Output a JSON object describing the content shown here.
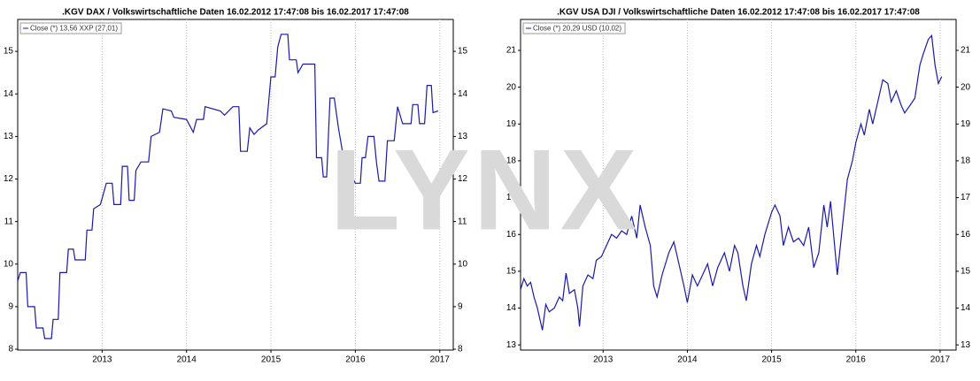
{
  "watermark": "LYNX",
  "chart_data": [
    {
      "type": "line",
      "title": ".KGV DAX / Volkswirtschaftliche Daten 16.02.2012 17:47:08 bis 16.02.2017 17:47:08",
      "xlim": [
        2012.0,
        2017.16
      ],
      "xticks": [
        2013,
        2014,
        2015,
        2016,
        2017
      ],
      "ylim": [
        7.98,
        15.75
      ],
      "yticks": [
        8,
        9,
        10,
        11,
        12,
        13,
        14,
        15
      ],
      "grid": true,
      "series": [
        {
          "name": "Close (*) 13,56 XXP (27,01)",
          "color": "#1a1aa8",
          "x": [
            2012.0,
            2012.03,
            2012.1,
            2012.12,
            2012.2,
            2012.22,
            2012.3,
            2012.32,
            2012.4,
            2012.42,
            2012.48,
            2012.5,
            2012.58,
            2012.6,
            2012.66,
            2012.68,
            2012.8,
            2012.82,
            2012.88,
            2012.9,
            2012.98,
            2013.05,
            2013.12,
            2013.14,
            2013.22,
            2013.24,
            2013.3,
            2013.32,
            2013.38,
            2013.4,
            2013.46,
            2013.55,
            2013.58,
            2013.68,
            2013.72,
            2013.82,
            2013.85,
            2014.0,
            2014.08,
            2014.12,
            2014.2,
            2014.22,
            2014.4,
            2014.45,
            2014.55,
            2014.62,
            2014.64,
            2014.72,
            2014.75,
            2014.8,
            2014.85,
            2014.95,
            2015.0,
            2015.05,
            2015.08,
            2015.12,
            2015.2,
            2015.22,
            2015.3,
            2015.32,
            2015.38,
            2015.52,
            2015.54,
            2015.6,
            2015.62,
            2015.66,
            2015.7,
            2015.75,
            2015.8,
            2015.86,
            2015.9,
            2015.95,
            2016.0,
            2016.06,
            2016.08,
            2016.12,
            2016.15,
            2016.22,
            2016.25,
            2016.28,
            2016.35,
            2016.38,
            2016.46,
            2016.5,
            2016.56,
            2016.66,
            2016.68,
            2016.74,
            2016.76,
            2016.82,
            2016.85,
            2016.9,
            2016.92,
            2016.98
          ],
          "values": [
            9.6,
            9.8,
            9.8,
            9.0,
            9.0,
            8.5,
            8.5,
            8.25,
            8.25,
            8.7,
            8.7,
            9.8,
            9.8,
            10.35,
            10.35,
            10.1,
            10.1,
            10.8,
            10.8,
            11.3,
            11.4,
            11.9,
            11.9,
            11.4,
            11.4,
            12.3,
            12.3,
            11.5,
            11.5,
            12.2,
            12.4,
            12.4,
            13.0,
            13.1,
            13.65,
            13.6,
            13.45,
            13.4,
            13.1,
            13.4,
            13.4,
            13.7,
            13.6,
            13.5,
            13.7,
            13.7,
            12.65,
            12.65,
            13.2,
            13.05,
            13.15,
            13.3,
            14.4,
            14.4,
            15.1,
            15.4,
            15.4,
            14.8,
            14.8,
            14.5,
            14.7,
            14.7,
            12.5,
            12.5,
            12.05,
            12.05,
            13.9,
            13.9,
            13.2,
            12.5,
            12.05,
            12.1,
            11.9,
            11.9,
            12.5,
            12.5,
            13.0,
            13.0,
            12.4,
            11.95,
            11.95,
            12.9,
            12.9,
            13.7,
            13.3,
            13.3,
            13.75,
            13.75,
            13.3,
            13.3,
            14.2,
            14.2,
            13.56,
            13.6
          ]
        }
      ]
    },
    {
      "type": "line",
      "title": ".KGV USA DJI / Volkswirtschaftliche Daten 16.02.2012 17:47:08 bis 16.02.2017 17:47:08",
      "xlim": [
        2012.02,
        2017.19
      ],
      "xticks": [
        2013,
        2014,
        2015,
        2016,
        2017
      ],
      "ylim": [
        12.86,
        21.84
      ],
      "yticks": [
        13,
        14,
        15,
        16,
        17,
        18,
        19,
        20,
        21
      ],
      "grid": true,
      "series": [
        {
          "name": "Close (*) 20,29 USD (10,02)",
          "color": "#1a1aa8",
          "x": [
            2012.02,
            2012.06,
            2012.1,
            2012.14,
            2012.18,
            2012.22,
            2012.26,
            2012.28,
            2012.32,
            2012.36,
            2012.42,
            2012.48,
            2012.52,
            2012.56,
            2012.6,
            2012.66,
            2012.7,
            2012.72,
            2012.76,
            2012.82,
            2012.88,
            2012.92,
            2012.98,
            2013.02,
            2013.1,
            2013.16,
            2013.22,
            2013.28,
            2013.34,
            2013.4,
            2013.44,
            2013.5,
            2013.56,
            2013.6,
            2013.64,
            2013.7,
            2013.78,
            2013.84,
            2013.9,
            2013.96,
            2014.0,
            2014.06,
            2014.12,
            2014.18,
            2014.24,
            2014.3,
            2014.36,
            2014.44,
            2014.5,
            2014.56,
            2014.6,
            2014.66,
            2014.7,
            2014.76,
            2014.82,
            2014.86,
            2014.92,
            2015.0,
            2015.04,
            2015.1,
            2015.14,
            2015.2,
            2015.26,
            2015.32,
            2015.38,
            2015.44,
            2015.5,
            2015.56,
            2015.62,
            2015.66,
            2015.7,
            2015.74,
            2015.78,
            2015.84,
            2015.9,
            2015.96,
            2016.0,
            2016.06,
            2016.1,
            2016.16,
            2016.2,
            2016.26,
            2016.32,
            2016.38,
            2016.42,
            2016.48,
            2016.54,
            2016.58,
            2016.64,
            2016.7,
            2016.76,
            2016.8,
            2016.86,
            2016.9,
            2016.94,
            2016.98,
            2017.02
          ],
          "values": [
            14.5,
            14.8,
            14.6,
            14.7,
            14.3,
            14.0,
            13.6,
            13.4,
            14.1,
            13.9,
            14.0,
            14.3,
            14.2,
            14.95,
            14.4,
            14.5,
            14.0,
            13.5,
            14.6,
            14.9,
            14.8,
            15.3,
            15.4,
            15.6,
            16.0,
            15.9,
            16.1,
            16.0,
            16.5,
            15.9,
            16.8,
            16.2,
            15.7,
            14.6,
            14.3,
            14.9,
            15.5,
            15.8,
            15.2,
            14.6,
            14.15,
            14.9,
            14.6,
            14.9,
            15.2,
            14.6,
            15.1,
            15.5,
            15.0,
            15.7,
            15.5,
            14.6,
            14.2,
            15.2,
            15.7,
            15.4,
            16.0,
            16.6,
            16.8,
            16.5,
            15.7,
            16.2,
            15.8,
            15.9,
            15.7,
            16.2,
            15.1,
            15.5,
            16.8,
            16.2,
            16.9,
            15.9,
            14.9,
            16.2,
            17.5,
            18.0,
            18.5,
            19.0,
            18.7,
            19.4,
            19.0,
            19.6,
            20.2,
            20.1,
            19.6,
            19.9,
            19.5,
            19.3,
            19.5,
            19.7,
            20.6,
            20.9,
            21.3,
            21.4,
            20.6,
            20.1,
            20.29
          ]
        }
      ]
    }
  ]
}
